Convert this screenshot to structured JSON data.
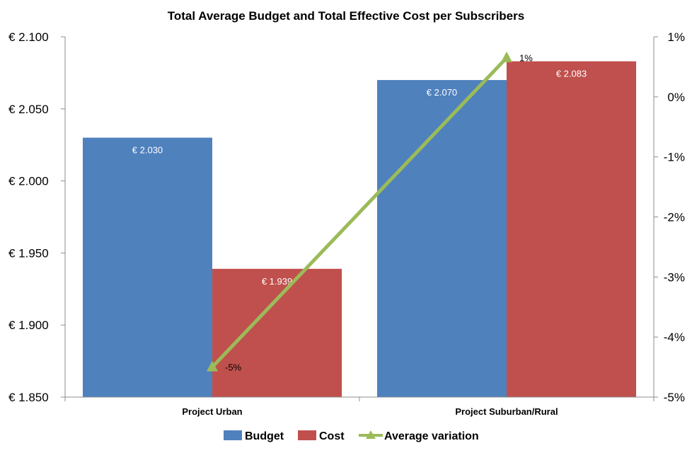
{
  "chart_data": {
    "type": "bar",
    "title": "Total Average Budget and Total Effective Cost per Subscribers",
    "categories": [
      "Project Urban",
      "Project Suburban/Rural"
    ],
    "series": [
      {
        "name": "Budget",
        "kind": "bar",
        "axis": "left",
        "color": "#4f81bd",
        "values": [
          2030,
          2070
        ],
        "labels": [
          "€ 2.030",
          "€ 2.070"
        ]
      },
      {
        "name": "Cost",
        "kind": "bar",
        "axis": "left",
        "color": "#c0504d",
        "values": [
          1939,
          2083
        ],
        "labels": [
          "€ 1.939",
          "€ 2.083"
        ]
      },
      {
        "name": "Average variation",
        "kind": "line",
        "axis": "right",
        "color": "#9bbb59",
        "values": [
          -4.5,
          0.65
        ],
        "labels": [
          "-5%",
          "1%"
        ]
      }
    ],
    "y_left": {
      "ylim": [
        1850,
        2100
      ],
      "ticks": [
        1850,
        1900,
        1950,
        2000,
        2050,
        2100
      ],
      "tick_labels": [
        "€ 1.850",
        "€ 1.900",
        "€ 1.950",
        "€ 2.000",
        "€ 2.050",
        "€ 2.100"
      ]
    },
    "y_right": {
      "ylim": [
        -5,
        1
      ],
      "ticks": [
        -5,
        -4,
        -3,
        -2,
        -1,
        0,
        1
      ],
      "tick_labels": [
        "-5%",
        "-4%",
        "-3%",
        "-2%",
        "-1%",
        "0%",
        "1%"
      ]
    },
    "grid": false,
    "legend_position": "bottom"
  }
}
